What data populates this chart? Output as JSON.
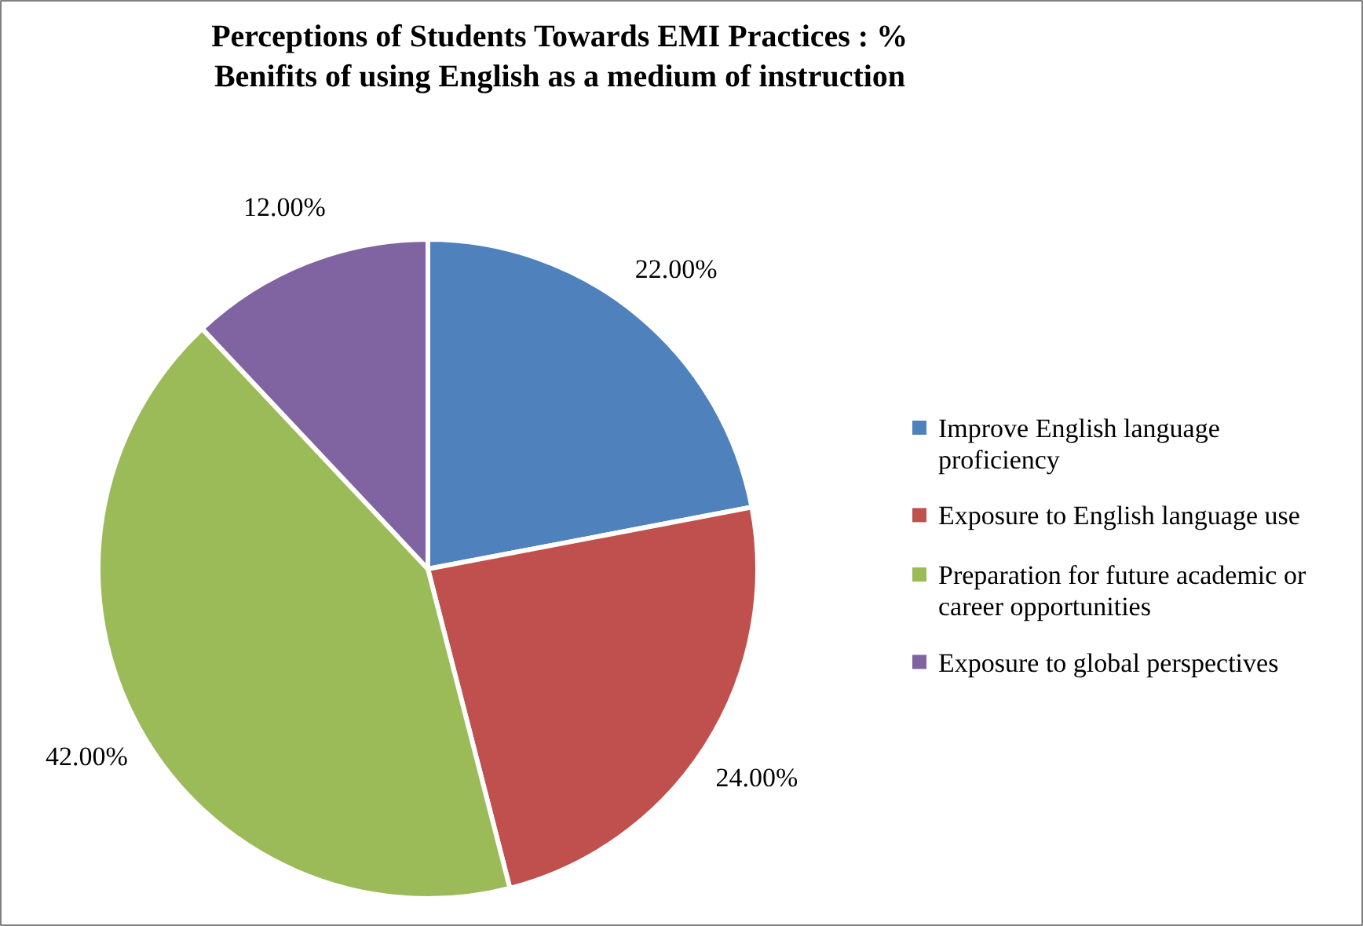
{
  "chart_data": {
    "type": "pie",
    "title": "Perceptions of Students Towards EMI Practices : %\nBenifits of using English as a medium of instruction",
    "categories": [
      "Improve English language proficiency",
      "Exposure to English language use",
      "Preparation for future academic or career opportunities",
      "Exposure to global perspectives"
    ],
    "values": [
      22,
      24,
      42,
      12
    ],
    "colors": [
      "#4f81bd",
      "#c0504d",
      "#9bbb59",
      "#8064a2"
    ],
    "value_labels": [
      "22.00%",
      "24.00%",
      "42.00%",
      "12.00%"
    ],
    "legend": "right"
  }
}
